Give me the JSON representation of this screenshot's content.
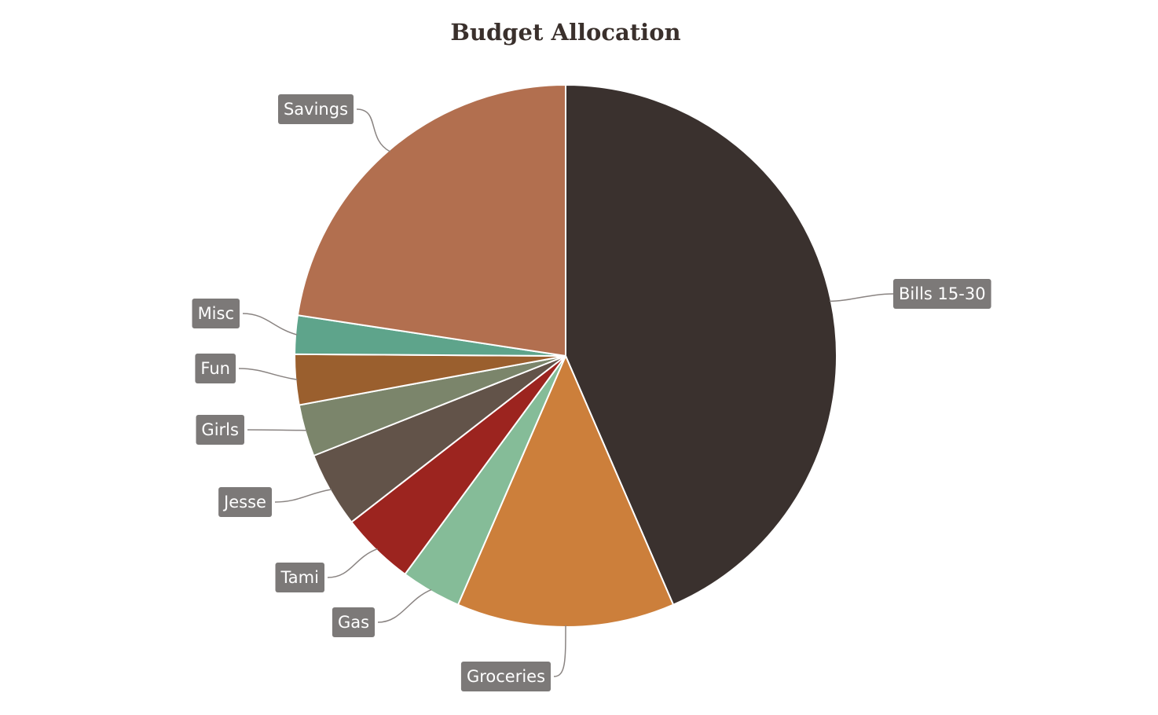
{
  "chart_data": {
    "type": "pie",
    "title": "Budget Allocation",
    "start_angle_deg": 0,
    "direction": "clockwise",
    "slices": [
      {
        "label": "Bills 15-30",
        "value": 43.5,
        "color": "#3a312e"
      },
      {
        "label": "Groceries",
        "value": 13.0,
        "color": "#cc7f3b"
      },
      {
        "label": "Gas",
        "value": 3.6,
        "color": "#85bc98"
      },
      {
        "label": "Tami",
        "value": 4.4,
        "color": "#9c241f"
      },
      {
        "label": "Jesse",
        "value": 4.5,
        "color": "#625349"
      },
      {
        "label": "Girls",
        "value": 3.1,
        "color": "#7b856b"
      },
      {
        "label": "Fun",
        "value": 3.0,
        "color": "#9a5f2e"
      },
      {
        "label": "Misc",
        "value": 2.3,
        "color": "#5ea48b"
      },
      {
        "label": "Savings",
        "value": 22.6,
        "color": "#b26f4f"
      }
    ]
  }
}
